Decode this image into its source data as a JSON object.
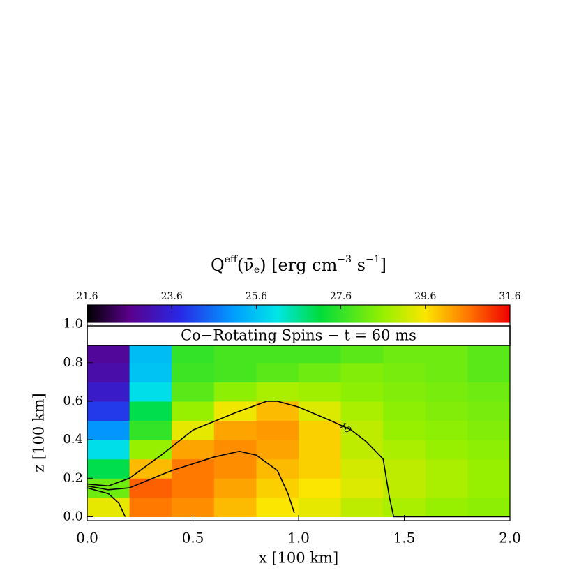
{
  "chart_data": {
    "type": "heatmap",
    "title": [
      "Q",
      "eff",
      "(ν̄",
      "e",
      ") [erg cm",
      "−3",
      " s",
      "−1",
      "]"
    ],
    "panel_label": "Co−Rotating Spins − t = 60 ms",
    "xlabel": "x [100 km]",
    "ylabel": "z [100 km]",
    "xlim": [
      0,
      2
    ],
    "ylim": [
      -0.02,
      1.1
    ],
    "xticks": [
      {
        "value": 0,
        "label": "0.0"
      },
      {
        "value": 0.5,
        "label": "0.5"
      },
      {
        "value": 1,
        "label": "1.0"
      },
      {
        "value": 1.5,
        "label": "1.5"
      },
      {
        "value": 2,
        "label": "2.0"
      }
    ],
    "yticks": [
      {
        "value": 0,
        "label": "0.0"
      },
      {
        "value": 0.2,
        "label": "0.2"
      },
      {
        "value": 0.4,
        "label": "0.4"
      },
      {
        "value": 0.6,
        "label": "0.6"
      },
      {
        "value": 0.8,
        "label": "0.8"
      },
      {
        "value": 1,
        "label": "1.0"
      }
    ],
    "clim": [
      21.6,
      31.6
    ],
    "cticks": [
      21.6,
      23.6,
      25.6,
      27.6,
      29.6,
      31.6
    ],
    "x_bins": [
      0,
      0.2,
      0.4,
      0.6,
      0.8,
      1.0,
      1.2,
      1.4,
      1.6,
      1.8,
      2.0
    ],
    "z_bins": [
      0,
      0.1,
      0.2,
      0.3,
      0.4,
      0.5,
      0.6,
      0.7,
      0.8,
      0.9
    ],
    "values": [
      [
        29.4,
        30.6,
        30.4,
        30.0,
        29.6,
        29.4,
        29.0,
        28.8,
        28.6,
        28.5
      ],
      [
        28.2,
        30.8,
        30.6,
        30.2,
        29.8,
        29.6,
        29.3,
        29.0,
        28.8,
        28.6
      ],
      [
        27.0,
        30.0,
        30.6,
        30.4,
        30.0,
        29.8,
        29.2,
        29.0,
        28.8,
        28.6
      ],
      [
        26.0,
        28.6,
        30.2,
        30.4,
        30.2,
        29.8,
        29.0,
        28.8,
        28.6,
        28.5
      ],
      [
        25.0,
        27.6,
        29.4,
        30.2,
        30.3,
        29.8,
        29.0,
        28.6,
        28.5,
        28.4
      ],
      [
        24.0,
        27.0,
        28.6,
        29.5,
        30.0,
        29.3,
        28.8,
        28.5,
        28.4,
        28.3
      ],
      [
        23.4,
        26.0,
        28.0,
        28.5,
        28.8,
        28.7,
        28.5,
        28.4,
        28.3,
        28.2
      ],
      [
        23.0,
        25.6,
        27.7,
        27.8,
        28.0,
        28.2,
        28.4,
        28.3,
        28.2,
        28.0
      ],
      [
        22.8,
        25.5,
        27.6,
        27.8,
        27.8,
        27.8,
        28.0,
        28.2,
        28.2,
        28.0
      ]
    ],
    "contours": [
      {
        "label": "10",
        "label_at": [
          1.22,
          0.46
        ],
        "x": [
          0,
          0.1,
          0.2,
          0.35,
          0.5,
          0.7,
          0.85,
          0.9,
          1.0,
          1.15,
          1.25,
          1.32,
          1.4,
          1.43,
          1.45,
          2.0
        ],
        "y": [
          0.17,
          0.16,
          0.2,
          0.32,
          0.45,
          0.54,
          0.6,
          0.6,
          0.57,
          0.5,
          0.45,
          0.39,
          0.3,
          0.1,
          0.0,
          0.0
        ]
      },
      {
        "x": [
          0,
          0.1,
          0.2,
          0.4,
          0.6,
          0.72,
          0.8,
          0.9,
          0.95,
          0.98
        ],
        "y": [
          0.16,
          0.14,
          0.15,
          0.24,
          0.31,
          0.34,
          0.32,
          0.24,
          0.12,
          0.02
        ]
      },
      {
        "x": [
          0,
          0.1,
          0.15,
          0.18
        ],
        "y": [
          0.15,
          0.12,
          0.07,
          0.0
        ]
      }
    ]
  }
}
